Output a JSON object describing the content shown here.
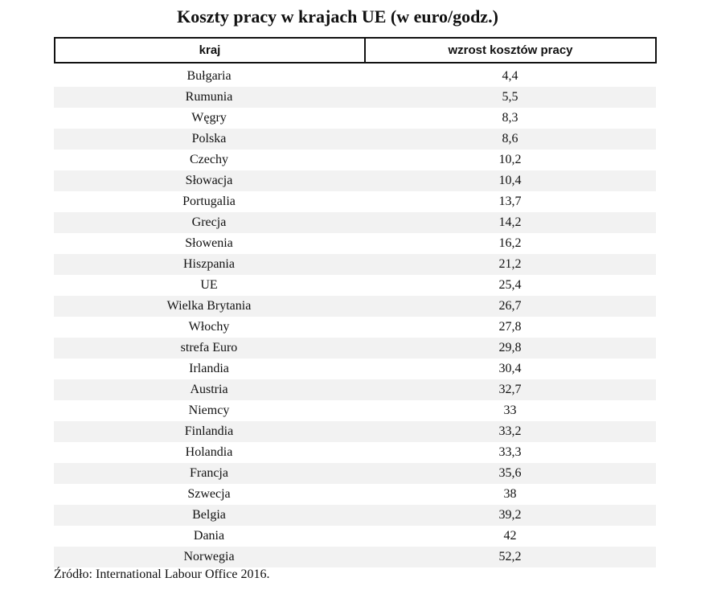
{
  "chart_data": {
    "type": "table",
    "title": "Koszty pracy w krajach UE (w euro/godz.)",
    "columns": [
      "kraj",
      "wzrost kosztów pracy"
    ],
    "rows": [
      [
        "Bułgaria",
        "4,4"
      ],
      [
        "Rumunia",
        "5,5"
      ],
      [
        "Węgry",
        "8,3"
      ],
      [
        "Polska",
        "8,6"
      ],
      [
        "Czechy",
        "10,2"
      ],
      [
        "Słowacja",
        "10,4"
      ],
      [
        "Portugalia",
        "13,7"
      ],
      [
        "Grecja",
        "14,2"
      ],
      [
        "Słowenia",
        "16,2"
      ],
      [
        "Hiszpania",
        "21,2"
      ],
      [
        "UE",
        "25,4"
      ],
      [
        "Wielka Brytania",
        "26,7"
      ],
      [
        "Włochy",
        "27,8"
      ],
      [
        "strefa Euro",
        "29,8"
      ],
      [
        "Irlandia",
        "30,4"
      ],
      [
        "Austria",
        "32,7"
      ],
      [
        "Niemcy",
        "33"
      ],
      [
        "Finlandia",
        "33,2"
      ],
      [
        "Holandia",
        "33,3"
      ],
      [
        "Francja",
        "35,6"
      ],
      [
        "Szwecja",
        "38"
      ],
      [
        "Belgia",
        "39,2"
      ],
      [
        "Dania",
        "42"
      ],
      [
        "Norwegia",
        "52,2"
      ]
    ],
    "source": "Źródło: International Labour Office 2016.",
    "colors": {
      "stripe": "#f2f2f2",
      "border": "#111111"
    }
  }
}
